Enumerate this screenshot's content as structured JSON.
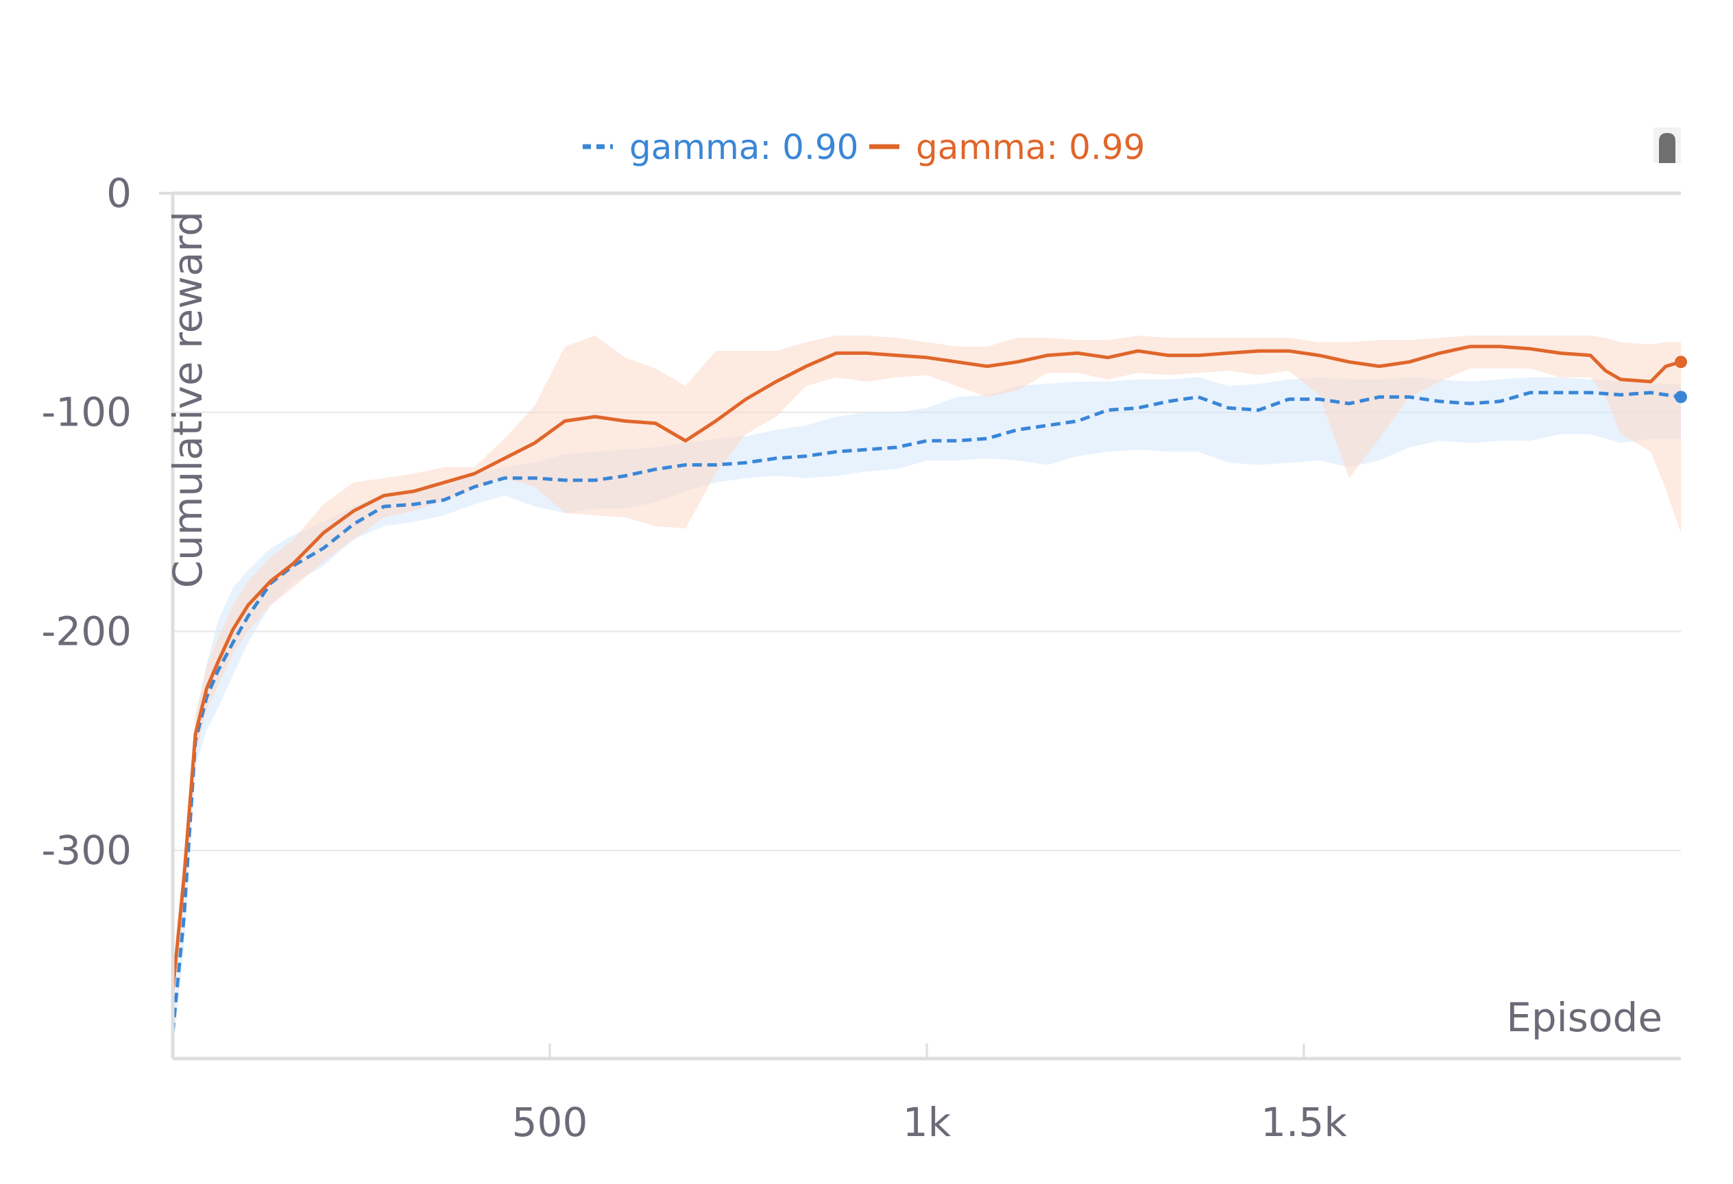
{
  "chart_data": {
    "type": "line",
    "title": "",
    "xlabel": "Episode",
    "ylabel": "Cumulative reward",
    "xlim": [
      0,
      2000
    ],
    "ylim": [
      -395,
      0
    ],
    "xticks": [
      500,
      1000,
      1500
    ],
    "xtick_labels": [
      "500",
      "1k",
      "1.5k"
    ],
    "yticks": [
      0,
      -100,
      -200,
      -300
    ],
    "ytick_labels": [
      "0",
      "-100",
      "-200",
      "-300"
    ],
    "grid": "horizontal",
    "legend_position": "top-center",
    "series": [
      {
        "name": "gamma: 0.90",
        "color": "#3a86d6",
        "style": "dashed",
        "x": [
          0,
          15,
          30,
          45,
          60,
          80,
          100,
          130,
          160,
          200,
          240,
          280,
          320,
          360,
          400,
          440,
          480,
          520,
          560,
          600,
          640,
          680,
          720,
          760,
          800,
          840,
          880,
          920,
          960,
          1000,
          1040,
          1080,
          1120,
          1160,
          1200,
          1240,
          1280,
          1320,
          1360,
          1400,
          1440,
          1480,
          1520,
          1560,
          1600,
          1640,
          1680,
          1720,
          1760,
          1800,
          1840,
          1880,
          1920,
          1960,
          2000
        ],
        "y": [
          -383,
          -330,
          -250,
          -230,
          -218,
          -205,
          -193,
          -178,
          -170,
          -162,
          -151,
          -143,
          -142,
          -140,
          -134,
          -130,
          -130,
          -131,
          -131,
          -129,
          -126,
          -124,
          -124,
          -123,
          -121,
          -120,
          -118,
          -117,
          -116,
          -113,
          -113,
          -112,
          -108,
          -106,
          -104,
          -99,
          -98,
          -95,
          -93,
          -98,
          -99,
          -94,
          -94,
          -96,
          -93,
          -93,
          -95,
          -96,
          -95,
          -91,
          -91,
          -91,
          -92,
          -91,
          -93
        ],
        "band_upper": [
          -375,
          -320,
          -240,
          -215,
          -195,
          -180,
          -172,
          -162,
          -156,
          -150,
          -143,
          -137,
          -135,
          -133,
          -128,
          -125,
          -123,
          -119,
          -118,
          -117,
          -116,
          -114,
          -112,
          -111,
          -108,
          -106,
          -102,
          -100,
          -100,
          -98,
          -93,
          -92,
          -88,
          -87,
          -86,
          -86,
          -85,
          -85,
          -84,
          -88,
          -87,
          -85,
          -84,
          -85,
          -85,
          -84,
          -85,
          -86,
          -85,
          -84,
          -84,
          -85,
          -86,
          -87,
          -87
        ],
        "band_lower": [
          -392,
          -345,
          -262,
          -245,
          -235,
          -220,
          -205,
          -188,
          -178,
          -170,
          -158,
          -152,
          -150,
          -147,
          -142,
          -138,
          -143,
          -146,
          -144,
          -144,
          -141,
          -136,
          -132,
          -130,
          -129,
          -130,
          -129,
          -127,
          -126,
          -122,
          -122,
          -121,
          -122,
          -124,
          -120,
          -118,
          -117,
          -118,
          -118,
          -123,
          -124,
          -123,
          -122,
          -125,
          -122,
          -116,
          -113,
          -114,
          -113,
          -113,
          -110,
          -110,
          -114,
          -112,
          -112
        ]
      },
      {
        "name": "gamma: 0.99",
        "color": "#e0662a",
        "style": "solid",
        "x": [
          0,
          15,
          30,
          45,
          60,
          80,
          100,
          130,
          160,
          200,
          240,
          280,
          320,
          360,
          400,
          440,
          480,
          520,
          560,
          600,
          640,
          680,
          720,
          760,
          800,
          840,
          880,
          920,
          960,
          1000,
          1040,
          1080,
          1120,
          1160,
          1200,
          1240,
          1280,
          1320,
          1360,
          1400,
          1440,
          1480,
          1520,
          1560,
          1600,
          1640,
          1680,
          1720,
          1760,
          1800,
          1840,
          1880,
          1900,
          1920,
          1960,
          1980,
          2000
        ],
        "y": [
          -364,
          -312,
          -247,
          -226,
          -214,
          -199,
          -188,
          -177,
          -169,
          -155,
          -145,
          -138,
          -136,
          -132,
          -128,
          -121,
          -114,
          -104,
          -102,
          -104,
          -105,
          -113,
          -104,
          -94,
          -86,
          -79,
          -73,
          -73,
          -74,
          -75,
          -77,
          -79,
          -77,
          -74,
          -73,
          -75,
          -72,
          -74,
          -74,
          -73,
          -72,
          -72,
          -74,
          -77,
          -79,
          -77,
          -73,
          -70,
          -70,
          -71,
          -73,
          -74,
          -81,
          -85,
          -86,
          -79,
          -77
        ],
        "band_upper": [
          -355,
          -302,
          -238,
          -216,
          -203,
          -188,
          -177,
          -166,
          -158,
          -142,
          -132,
          -130,
          -128,
          -125,
          -125,
          -112,
          -97,
          -70,
          -65,
          -75,
          -80,
          -88,
          -72,
          -72,
          -72,
          -68,
          -65,
          -65,
          -66,
          -68,
          -70,
          -70,
          -66,
          -66,
          -67,
          -67,
          -65,
          -66,
          -66,
          -66,
          -66,
          -66,
          -68,
          -68,
          -67,
          -67,
          -66,
          -65,
          -65,
          -65,
          -65,
          -65,
          -66,
          -68,
          -69,
          -68,
          -68
        ],
        "band_lower": [
          -372,
          -322,
          -257,
          -236,
          -225,
          -210,
          -200,
          -188,
          -180,
          -168,
          -158,
          -148,
          -145,
          -140,
          -135,
          -130,
          -134,
          -146,
          -147,
          -148,
          -152,
          -153,
          -128,
          -110,
          -102,
          -88,
          -84,
          -86,
          -84,
          -83,
          -88,
          -93,
          -90,
          -82,
          -82,
          -85,
          -82,
          -83,
          -82,
          -81,
          -83,
          -81,
          -92,
          -130,
          -112,
          -93,
          -86,
          -80,
          -80,
          -80,
          -84,
          -84,
          -93,
          -110,
          -118,
          -135,
          -155
        ]
      }
    ]
  }
}
